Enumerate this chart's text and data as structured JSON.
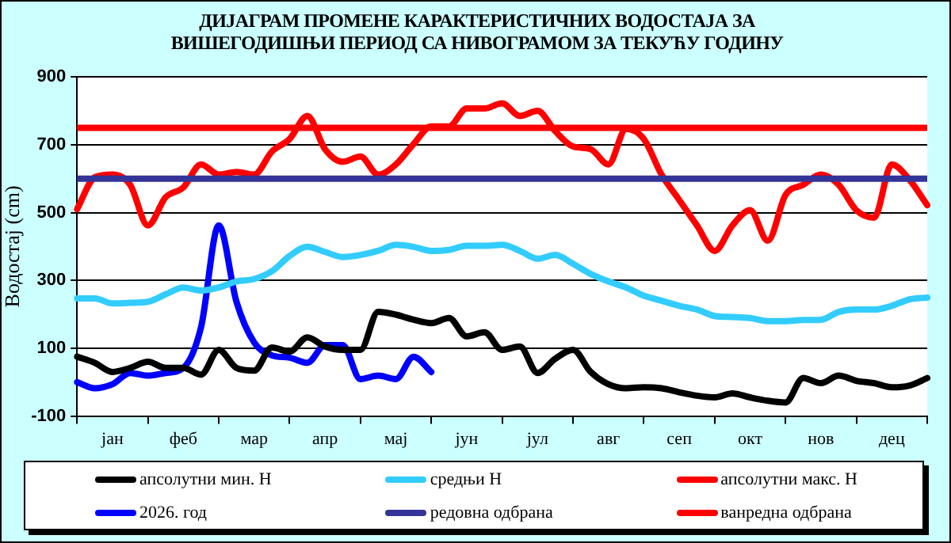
{
  "chart_data": {
    "type": "line",
    "title": "ДИЈАГРАМ ПРОМЕНЕ КАРАКТЕРИСТИЧНИХ ВОДОСТАЈА ЗА ВИШЕГОДИШЊИ ПЕРИОД СА НИВОГРАМОМ ЗА ТЕКУЋУ ГОДИНУ",
    "ylabel": "Водостај (cm)",
    "categories": [
      null,
      null,
      "јан",
      null,
      null,
      null,
      "феб",
      null,
      null,
      null,
      "мар",
      null,
      null,
      null,
      "апр",
      null,
      null,
      null,
      "мај",
      null,
      null,
      null,
      "јун",
      null,
      null,
      null,
      "јул",
      null,
      null,
      null,
      "авг",
      null,
      null,
      null,
      "сеп",
      null,
      null,
      null,
      "окт",
      null,
      null,
      null,
      "нов",
      null,
      null,
      null,
      "дец",
      null,
      null
    ],
    "series": [
      {
        "name": "апсолутни мин. Н",
        "color": "#000000",
        "values": [
          75,
          57,
          30,
          42,
          60,
          42,
          42,
          22,
          95,
          42,
          34,
          102,
          90,
          132,
          105,
          95,
          95,
          207,
          199,
          184,
          174,
          189,
          135,
          147,
          95,
          105,
          27,
          69,
          95,
          30,
          -6,
          -18,
          -15,
          -18,
          -30,
          -40,
          -45,
          -33,
          -45,
          -55,
          -60,
          12,
          -3,
          19,
          4,
          -3,
          -15,
          -10,
          12
        ]
      },
      {
        "name": "средњи Н",
        "color": "#33ccff",
        "values": [
          247,
          247,
          232,
          234,
          237,
          259,
          279,
          270,
          279,
          297,
          304,
          327,
          372,
          399,
          384,
          369,
          375,
          387,
          405,
          399,
          387,
          390,
          402,
          402,
          405,
          387,
          364,
          375,
          349,
          319,
          297,
          279,
          255,
          240,
          225,
          214,
          195,
          192,
          189,
          180,
          180,
          183,
          184,
          207,
          214,
          214,
          225,
          244,
          249
        ]
      },
      {
        "name": "апсолутни макс. Н",
        "color": "#ff0000",
        "values": [
          510,
          604,
          612,
          582,
          462,
          545,
          574,
          642,
          612,
          620,
          612,
          680,
          717,
          785,
          687,
          650,
          665,
          612,
          642,
          702,
          754,
          754,
          807,
          807,
          822,
          785,
          800,
          740,
          695,
          687,
          642,
          747,
          717,
          612,
          537,
          462,
          387,
          462,
          507,
          417,
          552,
          582,
          612,
          582,
          507,
          485,
          642,
          597,
          522
        ]
      },
      {
        "name": "2026. год",
        "color": "#0000ff",
        "values": [
          0,
          -18,
          -6,
          27,
          19,
          27,
          42,
          162,
          462,
          237,
          117,
          79,
          72,
          57,
          109,
          109,
          9,
          19,
          9,
          75,
          30,
          null,
          null,
          null,
          null,
          null,
          null,
          null,
          null,
          null,
          null,
          null,
          null,
          null,
          null,
          null,
          null,
          null,
          null,
          null,
          null,
          null,
          null,
          null,
          null,
          null,
          null,
          null,
          null
        ]
      }
    ],
    "ref_lines": [
      {
        "axis": "y",
        "value": 600,
        "label": "редовна одбрана",
        "color": "#333399"
      },
      {
        "axis": "y",
        "value": 750,
        "label": "ванредна одбрана",
        "color": "#ff0000"
      }
    ],
    "ylim": [
      -100,
      900
    ],
    "yticks": [
      -100,
      100,
      300,
      500,
      700,
      900
    ],
    "grid": "y",
    "legend": "bottom",
    "marker": "none",
    "line_style": "solid"
  }
}
